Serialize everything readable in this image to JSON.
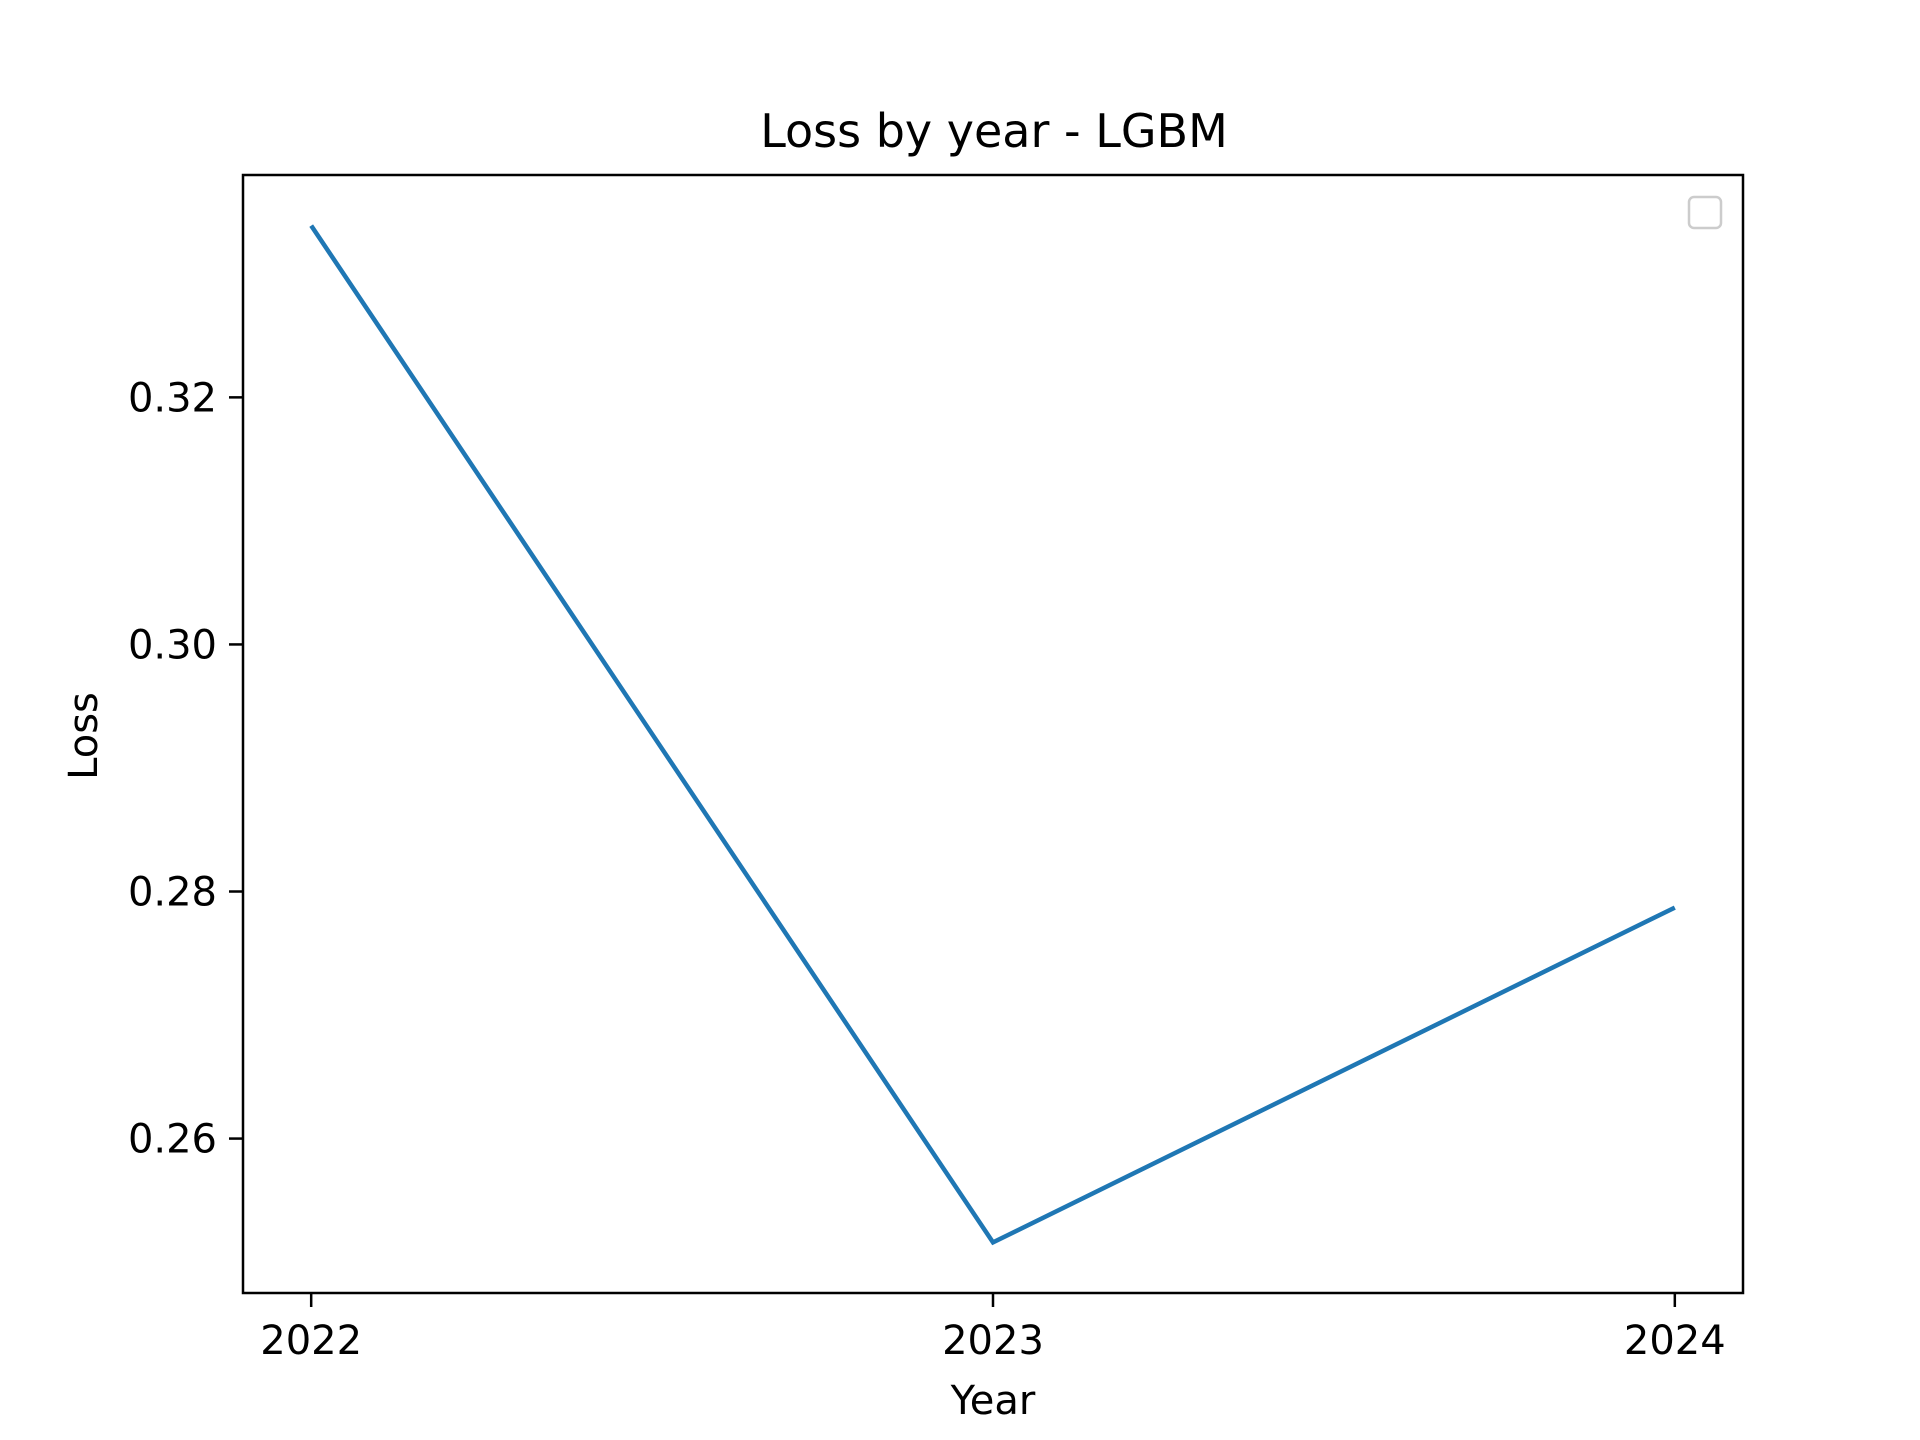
{
  "chart_data": {
    "type": "line",
    "title": "Loss by year - LGBM",
    "xlabel": "Year",
    "ylabel": "Loss",
    "x": [
      "2022",
      "2023",
      "2024"
    ],
    "series": [
      {
        "values": [
          0.3339,
          0.2516,
          0.2787
        ],
        "color": "#1f77b4"
      }
    ],
    "xlim": [
      2021.9,
      2024.1
    ],
    "ylim": [
      0.2475,
      0.338
    ],
    "yticks": [
      "0.26",
      "0.28",
      "0.30",
      "0.32"
    ],
    "grid": false,
    "legend": {
      "placement": "top-right",
      "entries": []
    }
  }
}
